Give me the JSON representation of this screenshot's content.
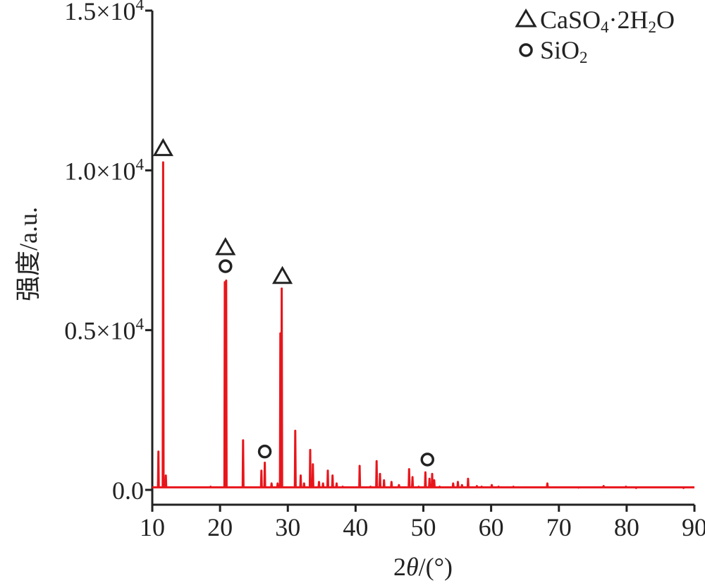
{
  "chart_data": {
    "type": "line",
    "xlabel_parts": {
      "number": "2",
      "theta": "θ",
      "unit": "/(°)"
    },
    "ylabel": "强度/a.u.",
    "xlim": [
      10,
      90
    ],
    "ylim": [
      0,
      15000
    ],
    "x_ticks": [
      10,
      20,
      30,
      40,
      50,
      60,
      70,
      80,
      90
    ],
    "y_ticks": [
      {
        "value": 0,
        "label": "0.0",
        "sup": ""
      },
      {
        "value": 5000,
        "label": "0.5×10",
        "sup": "4"
      },
      {
        "value": 10000,
        "label": "1.0×10",
        "sup": "4"
      },
      {
        "value": 15000,
        "label": "1.5×10",
        "sup": "4"
      }
    ],
    "baseline": 80,
    "series": [
      {
        "color": "#e8151b",
        "peaks": [
          {
            "x": 10.9,
            "y": 1200
          },
          {
            "x": 11.6,
            "y": 10250
          },
          {
            "x": 12.0,
            "y": 450
          },
          {
            "x": 18.6,
            "y": 100
          },
          {
            "x": 20.7,
            "y": 6500
          },
          {
            "x": 20.9,
            "y": 6550
          },
          {
            "x": 23.4,
            "y": 1550
          },
          {
            "x": 26.1,
            "y": 600
          },
          {
            "x": 26.6,
            "y": 850
          },
          {
            "x": 27.6,
            "y": 200
          },
          {
            "x": 28.5,
            "y": 200
          },
          {
            "x": 28.9,
            "y": 4900
          },
          {
            "x": 29.1,
            "y": 6300
          },
          {
            "x": 31.1,
            "y": 1850
          },
          {
            "x": 31.9,
            "y": 450
          },
          {
            "x": 32.4,
            "y": 200
          },
          {
            "x": 33.3,
            "y": 1250
          },
          {
            "x": 33.7,
            "y": 800
          },
          {
            "x": 34.6,
            "y": 250
          },
          {
            "x": 35.2,
            "y": 200
          },
          {
            "x": 35.9,
            "y": 600
          },
          {
            "x": 36.6,
            "y": 450
          },
          {
            "x": 37.2,
            "y": 200
          },
          {
            "x": 38.1,
            "y": 100
          },
          {
            "x": 40.6,
            "y": 750
          },
          {
            "x": 42.2,
            "y": 100
          },
          {
            "x": 43.1,
            "y": 900
          },
          {
            "x": 43.6,
            "y": 500
          },
          {
            "x": 44.2,
            "y": 300
          },
          {
            "x": 45.3,
            "y": 250
          },
          {
            "x": 46.4,
            "y": 150
          },
          {
            "x": 47.9,
            "y": 650
          },
          {
            "x": 48.4,
            "y": 400
          },
          {
            "x": 49.3,
            "y": 100
          },
          {
            "x": 50.3,
            "y": 550
          },
          {
            "x": 50.9,
            "y": 350
          },
          {
            "x": 51.3,
            "y": 500
          },
          {
            "x": 51.6,
            "y": 300
          },
          {
            "x": 52.4,
            "y": 100
          },
          {
            "x": 54.4,
            "y": 200
          },
          {
            "x": 55.1,
            "y": 250
          },
          {
            "x": 55.7,
            "y": 150
          },
          {
            "x": 56.6,
            "y": 350
          },
          {
            "x": 57.9,
            "y": 120
          },
          {
            "x": 58.6,
            "y": 100
          },
          {
            "x": 60.1,
            "y": 150
          },
          {
            "x": 61.1,
            "y": 100
          },
          {
            "x": 63.3,
            "y": 100
          },
          {
            "x": 64.1,
            "y": 80
          },
          {
            "x": 66.6,
            "y": 80
          },
          {
            "x": 68.3,
            "y": 200
          },
          {
            "x": 69.2,
            "y": 80
          },
          {
            "x": 70.6,
            "y": 80
          },
          {
            "x": 72.9,
            "y": 70
          },
          {
            "x": 75.1,
            "y": 80
          },
          {
            "x": 76.6,
            "y": 120
          },
          {
            "x": 77.4,
            "y": 80
          },
          {
            "x": 79.9,
            "y": 100
          },
          {
            "x": 81.4,
            "y": 60
          },
          {
            "x": 85.1,
            "y": 80
          },
          {
            "x": 88.4,
            "y": 60
          }
        ]
      }
    ],
    "markers": [
      {
        "type": "triangle",
        "x": 11.6,
        "y": 10700
      },
      {
        "type": "triangle",
        "x": 20.8,
        "y": 7600
      },
      {
        "type": "circle",
        "x": 20.8,
        "y": 7000
      },
      {
        "type": "triangle",
        "x": 29.2,
        "y": 6700
      },
      {
        "type": "circle",
        "x": 26.6,
        "y": 1200
      },
      {
        "type": "circle",
        "x": 50.6,
        "y": 950
      }
    ],
    "legend": {
      "position": "top-right",
      "entries": [
        {
          "symbol": "triangle",
          "text_parts": [
            "CaSO",
            "4",
            "·2H",
            "2",
            "O"
          ]
        },
        {
          "symbol": "circle",
          "text_parts": [
            "SiO",
            "2"
          ]
        }
      ]
    }
  }
}
